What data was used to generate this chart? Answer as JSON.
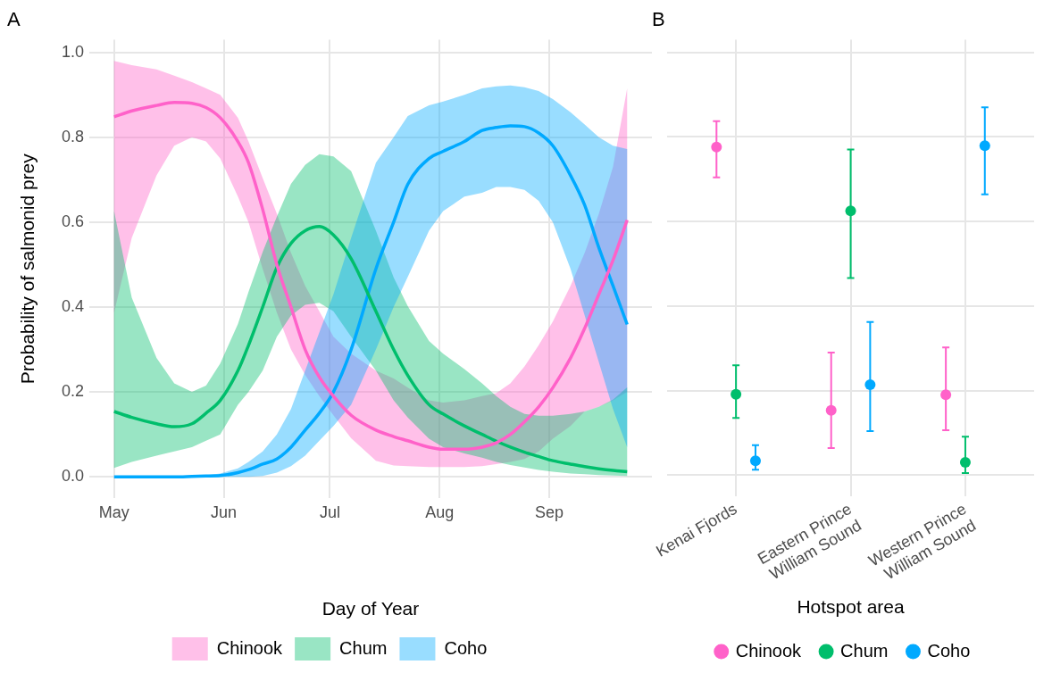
{
  "chart_data": [
    {
      "type": "line",
      "title": "A",
      "xlabel": "Day of Year",
      "ylabel": "Probability of salmonid prey",
      "x": [
        "--05-01",
        "--05-06",
        "--05-13",
        "--05-18",
        "--05-23",
        "--05-27",
        "--05-31",
        "--06-05",
        "--06-08",
        "--06-12",
        "--06-16",
        "--06-20",
        "--06-24",
        "--06-28",
        "--07-02",
        "--07-07",
        "--07-14",
        "--07-19",
        "--07-23",
        "--07-29",
        "--08-02",
        "--08-08",
        "--08-13",
        "--08-17",
        "--08-21",
        "--08-25",
        "--08-29",
        "--09-02",
        "--09-07",
        "--09-11",
        "--09-15",
        "--09-19",
        "--09-23"
      ],
      "series": [
        {
          "name": "Chinook",
          "color": "#ff61c9",
          "values": [
            0.848,
            0.862,
            0.875,
            0.882,
            0.88,
            0.87,
            0.846,
            0.79,
            0.74,
            0.63,
            0.5,
            0.4,
            0.3,
            0.235,
            0.19,
            0.145,
            0.11,
            0.095,
            0.085,
            0.07,
            0.065,
            0.065,
            0.07,
            0.08,
            0.1,
            0.13,
            0.165,
            0.21,
            0.28,
            0.35,
            0.43,
            0.51,
            0.605
          ],
          "lower": [
            0.387,
            0.563,
            0.71,
            0.78,
            0.8,
            0.79,
            0.75,
            0.66,
            0.6,
            0.49,
            0.387,
            0.3,
            0.24,
            0.19,
            0.145,
            0.091,
            0.038,
            0.027,
            0.025,
            0.023,
            0.023,
            0.023,
            0.025,
            0.03,
            0.035,
            0.042,
            0.06,
            0.09,
            0.12,
            0.154,
            0.165,
            0.18,
            0.2
          ],
          "upper": [
            0.98,
            0.97,
            0.96,
            0.945,
            0.93,
            0.915,
            0.9,
            0.846,
            0.79,
            0.704,
            0.62,
            0.528,
            0.45,
            0.39,
            0.33,
            0.29,
            0.25,
            0.232,
            0.21,
            0.18,
            0.175,
            0.18,
            0.19,
            0.197,
            0.22,
            0.26,
            0.31,
            0.366,
            0.45,
            0.528,
            0.62,
            0.73,
            0.915
          ]
        },
        {
          "name": "Chum",
          "color": "#00be6c",
          "values": [
            0.154,
            0.14,
            0.125,
            0.118,
            0.125,
            0.15,
            0.18,
            0.25,
            0.31,
            0.4,
            0.493,
            0.55,
            0.58,
            0.59,
            0.57,
            0.514,
            0.39,
            0.3,
            0.239,
            0.17,
            0.148,
            0.12,
            0.1,
            0.084,
            0.07,
            0.058,
            0.048,
            0.038,
            0.03,
            0.024,
            0.019,
            0.015,
            0.012
          ],
          "lower": [
            0.021,
            0.035,
            0.05,
            0.06,
            0.07,
            0.085,
            0.1,
            0.17,
            0.2,
            0.25,
            0.33,
            0.38,
            0.405,
            0.41,
            0.39,
            0.33,
            0.25,
            0.18,
            0.14,
            0.09,
            0.07,
            0.055,
            0.045,
            0.035,
            0.028,
            0.022,
            0.016,
            0.012,
            0.008,
            0.006,
            0.004,
            0.003,
            0.002
          ],
          "upper": [
            0.626,
            0.422,
            0.28,
            0.22,
            0.2,
            0.215,
            0.267,
            0.36,
            0.436,
            0.53,
            0.613,
            0.69,
            0.735,
            0.76,
            0.755,
            0.72,
            0.58,
            0.47,
            0.402,
            0.32,
            0.29,
            0.254,
            0.22,
            0.19,
            0.165,
            0.148,
            0.144,
            0.144,
            0.148,
            0.154,
            0.165,
            0.182,
            0.211
          ]
        },
        {
          "name": "Coho",
          "color": "#00a9ff",
          "values": [
            0,
            0,
            0,
            0,
            0.001,
            0.002,
            0.003,
            0.01,
            0.017,
            0.03,
            0.042,
            0.07,
            0.11,
            0.15,
            0.2,
            0.3,
            0.49,
            0.6,
            0.689,
            0.75,
            0.767,
            0.79,
            0.816,
            0.823,
            0.827,
            0.825,
            0.81,
            0.78,
            0.71,
            0.64,
            0.54,
            0.45,
            0.359
          ],
          "lower": [
            0,
            0,
            0,
            0,
            0,
            0,
            0,
            0,
            0,
            0.002,
            0.01,
            0.025,
            0.05,
            0.085,
            0.12,
            0.17,
            0.3,
            0.4,
            0.471,
            0.58,
            0.626,
            0.66,
            0.669,
            0.683,
            0.683,
            0.676,
            0.65,
            0.6,
            0.49,
            0.38,
            0.27,
            0.16,
            0.07
          ],
          "upper": [
            0,
            0,
            0,
            0.001,
            0.002,
            0.004,
            0.008,
            0.02,
            0.035,
            0.06,
            0.1,
            0.16,
            0.25,
            0.34,
            0.43,
            0.563,
            0.74,
            0.8,
            0.85,
            0.875,
            0.884,
            0.9,
            0.915,
            0.92,
            0.922,
            0.918,
            0.909,
            0.89,
            0.859,
            0.83,
            0.8,
            0.78,
            0.772
          ]
        }
      ],
      "xlim": [
        "--04-24",
        "--09-30"
      ],
      "xticks": [
        {
          "value": "--05-01",
          "label": "May"
        },
        {
          "value": "--06-01",
          "label": "Jun"
        },
        {
          "value": "--07-01",
          "label": "Jul"
        },
        {
          "value": "--08-01",
          "label": "Aug"
        },
        {
          "value": "--09-01",
          "label": "Sep"
        }
      ],
      "ylim": [
        -0.05,
        1.03
      ],
      "yticks": [
        {
          "value": 0,
          "label": "0.0"
        },
        0.2,
        0.4,
        0.6,
        0.8,
        {
          "value": 1,
          "label": "1.0"
        }
      ],
      "grid": true,
      "legend": "bottom",
      "marker": "none",
      "line_style": "solid"
    },
    {
      "type": "scatter",
      "title": "B",
      "xlabel": "Hotspot area",
      "categories": [
        "Kenai Fjords",
        "Eastern Prince William Sound",
        "Western Prince William Sound"
      ],
      "series": [
        {
          "name": "Chinook",
          "color": "#ff61c9",
          "x": [
            "Kenai Fjords",
            "Eastern Prince William Sound",
            "Western Prince William Sound"
          ],
          "values": [
            0.776,
            0.153,
            0.19
          ],
          "errors": [
            [
              0.704,
              0.837
            ],
            [
              0.064,
              0.29
            ],
            [
              0.106,
              0.302
            ]
          ]
        },
        {
          "name": "Chum",
          "color": "#00be6c",
          "x": [
            "Kenai Fjords",
            "Eastern Prince William Sound",
            "Western Prince William Sound"
          ],
          "values": [
            0.191,
            0.625,
            0.03
          ],
          "errors": [
            [
              0.135,
              0.26
            ],
            [
              0.466,
              0.77
            ],
            [
              0.005,
              0.091
            ]
          ]
        },
        {
          "name": "Coho",
          "color": "#00a9ff",
          "x": [
            "Kenai Fjords",
            "Eastern Prince William Sound",
            "Western Prince William Sound"
          ],
          "values": [
            0.034,
            0.214,
            0.779
          ],
          "errors": [
            [
              0.013,
              0.071
            ],
            [
              0.104,
              0.362
            ],
            [
              0.664,
              0.87
            ]
          ]
        }
      ],
      "ylim": [
        -0.05,
        1.03
      ],
      "yticks": [
        0,
        0.2,
        0.4,
        0.6,
        0.8,
        1
      ],
      "tick_labels": "x",
      "grid": true,
      "legend": "bottom",
      "marker": "circle"
    }
  ]
}
